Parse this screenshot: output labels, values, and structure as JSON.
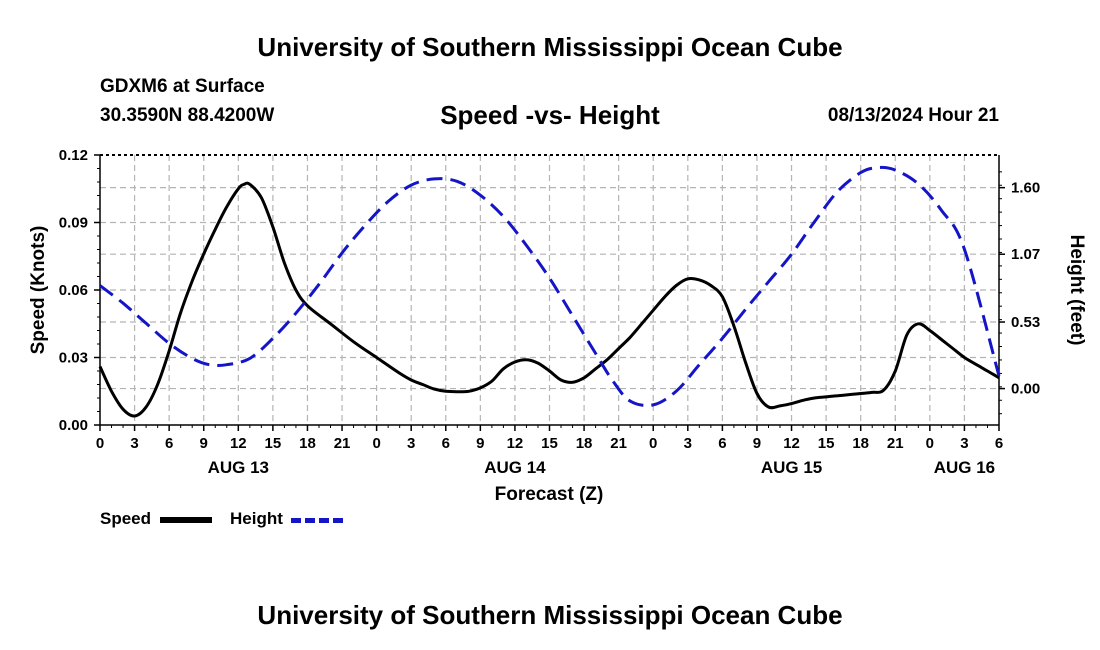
{
  "header": {
    "title": "University of Southern Mississippi Ocean Cube",
    "station": "GDXM6 at Surface",
    "coordinates": "30.3590N  88.4200W",
    "subtitle": "Speed -vs- Height",
    "datetime": "08/13/2024 Hour 21",
    "footer_title": "University of Southern Mississippi Ocean Cube"
  },
  "legend": {
    "speed_label": "Speed",
    "height_label": "Height"
  },
  "colors": {
    "speed": "#000000",
    "height": "#1515c8",
    "grid": "#b4b4b4"
  },
  "chart_data": {
    "type": "line",
    "title": "Speed -vs- Height",
    "xlabel": "Forecast (Z)",
    "ylabel": "Speed (Knots)",
    "y2label": "Height (feet)",
    "x_unit": "forecast hour from AUG 13 00Z",
    "xlim": [
      0,
      78
    ],
    "ylim": [
      0,
      0.12
    ],
    "y2lim": [
      -0.29,
      1.86
    ],
    "x_ticks": [
      0,
      3,
      6,
      9,
      12,
      15,
      18,
      21,
      24,
      27,
      30,
      33,
      36,
      39,
      42,
      45,
      48,
      51,
      54,
      57,
      60,
      63,
      66,
      69,
      72,
      75,
      78
    ],
    "x_tick_labels": [
      "0",
      "3",
      "6",
      "9",
      "12",
      "15",
      "18",
      "21",
      "0",
      "3",
      "6",
      "9",
      "12",
      "15",
      "18",
      "21",
      "0",
      "3",
      "6",
      "9",
      "12",
      "15",
      "18",
      "21",
      "0",
      "3",
      "6"
    ],
    "day_labels": [
      {
        "x": 12,
        "label": "AUG 13"
      },
      {
        "x": 36,
        "label": "AUG 14"
      },
      {
        "x": 60,
        "label": "AUG 15"
      },
      {
        "x": 75,
        "label": "AUG 16"
      }
    ],
    "y_ticks": [
      0,
      0.03,
      0.06,
      0.09,
      0.12
    ],
    "y_tick_labels": [
      "0.00",
      "0.03",
      "0.06",
      "0.09",
      "0.12"
    ],
    "y2_ticks": [
      0,
      0.53,
      1.07,
      1.6
    ],
    "y2_tick_labels": [
      "0.00",
      "0.53",
      "1.07",
      "1.60"
    ],
    "series": [
      {
        "name": "Speed",
        "axis": "left",
        "style": "solid",
        "x": [
          0,
          1,
          2,
          3,
          4,
          5,
          6,
          7,
          8,
          9,
          10,
          11,
          12,
          12.5,
          13,
          14,
          15,
          16,
          17,
          18,
          20,
          22,
          24,
          26,
          27,
          28,
          29,
          30,
          31,
          32,
          33,
          34,
          35,
          36,
          37,
          38,
          39,
          40,
          41,
          42,
          43,
          44,
          45,
          46,
          47,
          48,
          49,
          50,
          51,
          52,
          53,
          54,
          55,
          56,
          57,
          58,
          59,
          60,
          61,
          62,
          63,
          64,
          65,
          66,
          67,
          68,
          69,
          70,
          71,
          72,
          73,
          74,
          75,
          76,
          77,
          78
        ],
        "values": [
          0.026,
          0.015,
          0.007,
          0.004,
          0.008,
          0.018,
          0.033,
          0.05,
          0.064,
          0.076,
          0.087,
          0.097,
          0.105,
          0.107,
          0.107,
          0.101,
          0.088,
          0.072,
          0.06,
          0.053,
          0.045,
          0.037,
          0.03,
          0.023,
          0.02,
          0.018,
          0.016,
          0.015,
          0.0148,
          0.015,
          0.0165,
          0.0195,
          0.025,
          0.028,
          0.029,
          0.0275,
          0.024,
          0.02,
          0.019,
          0.021,
          0.025,
          0.029,
          0.034,
          0.039,
          0.045,
          0.051,
          0.057,
          0.062,
          0.065,
          0.0645,
          0.062,
          0.057,
          0.044,
          0.028,
          0.014,
          0.008,
          0.0085,
          0.0095,
          0.011,
          0.012,
          0.0125,
          0.013,
          0.0135,
          0.014,
          0.0145,
          0.0155,
          0.024,
          0.04,
          0.045,
          0.042,
          0.038,
          0.034,
          0.03,
          0.027,
          0.024,
          0.021
        ]
      },
      {
        "name": "Height",
        "axis": "right",
        "style": "dashed",
        "x": [
          0,
          2,
          4,
          6,
          8,
          9.5,
          11,
          13,
          15,
          17,
          19,
          21,
          23,
          25,
          27,
          29,
          31,
          33,
          35,
          37,
          39,
          41,
          43,
          44.5,
          46,
          48,
          50,
          52,
          54,
          56,
          58,
          60,
          62,
          64,
          66,
          67.5,
          69,
          71,
          73,
          75,
          78
        ],
        "values": [
          0.82,
          0.68,
          0.52,
          0.36,
          0.24,
          0.19,
          0.19,
          0.24,
          0.4,
          0.6,
          0.83,
          1.08,
          1.3,
          1.49,
          1.62,
          1.67,
          1.65,
          1.54,
          1.37,
          1.14,
          0.88,
          0.58,
          0.28,
          0.06,
          -0.1,
          -0.13,
          -0.02,
          0.19,
          0.4,
          0.63,
          0.85,
          1.07,
          1.33,
          1.57,
          1.72,
          1.76,
          1.74,
          1.63,
          1.42,
          1.11,
          0.1
        ]
      }
    ]
  }
}
